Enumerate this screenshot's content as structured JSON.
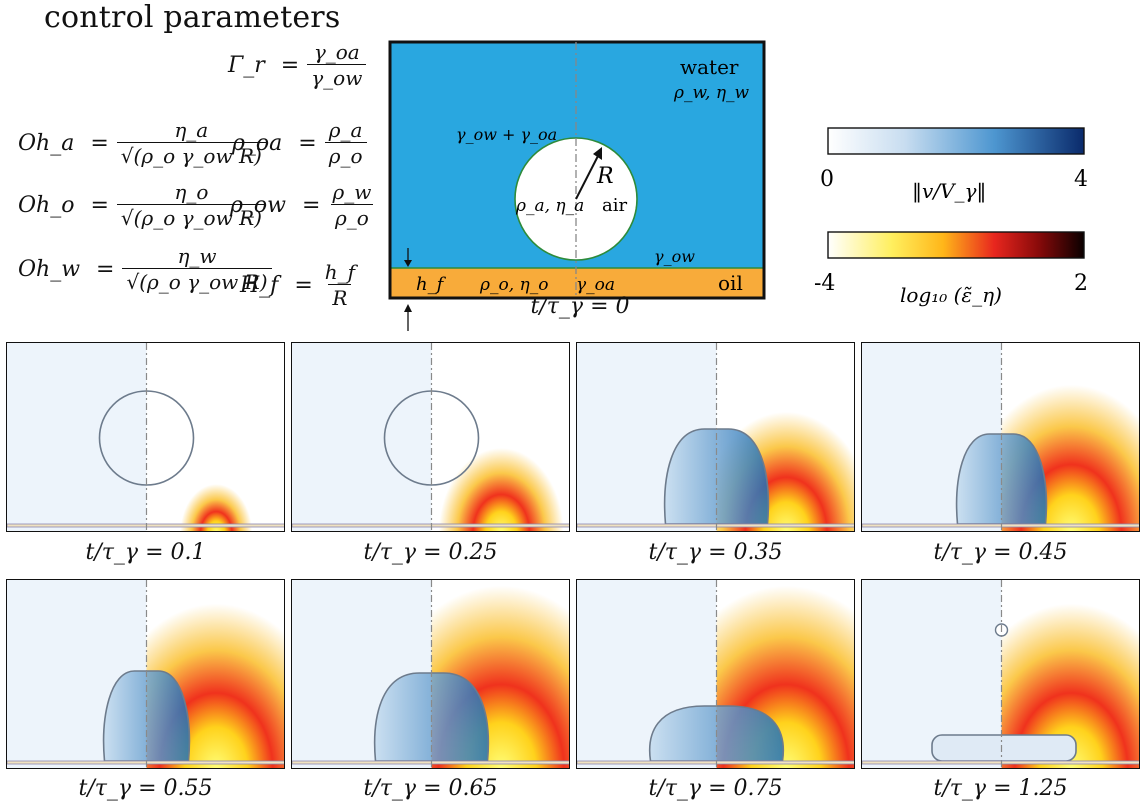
{
  "title": "control parameters",
  "params": {
    "gamma_r": {
      "lhs": "Γ_r",
      "num": "γ_oa",
      "den": "γ_ow"
    },
    "oh_a": {
      "lhs": "Oh_a",
      "num": "η_a",
      "den": "√(ρ_o γ_ow R)"
    },
    "oh_o": {
      "lhs": "Oh_o",
      "num": "η_o",
      "den": "√(ρ_o γ_ow R)"
    },
    "oh_w": {
      "lhs": "Oh_w",
      "num": "η_w",
      "den": "√(ρ_o γ_ow R)"
    },
    "rho_oa": {
      "lhs": "ρ_oa",
      "num": "ρ_a",
      "den": "ρ_o"
    },
    "rho_ow": {
      "lhs": "ρ_ow",
      "num": "ρ_w",
      "den": "ρ_o"
    },
    "h_f": {
      "lhs": "H_f",
      "num": "h_f",
      "den": "R"
    }
  },
  "schematic": {
    "water_label": "water",
    "water_props": "ρ_w, η_w",
    "air_label": "air",
    "air_props": "ρ_a, η_a",
    "radius_label": "R",
    "gamma_ow_oa": "γ_ow + γ_oa",
    "gamma_ow": "γ_ow",
    "gamma_oa": "γ_oa",
    "oil_label": "oil",
    "oil_props": "ρ_o, η_o",
    "film_label": "h_f",
    "caption": "t/τ_γ = 0",
    "colors": {
      "water": "#29a7e0",
      "oil": "#f8ab3a",
      "interface": "#2e8b3a"
    }
  },
  "colorbars": {
    "velocity": {
      "label": "‖v/V_γ‖",
      "min": "0",
      "max": "4"
    },
    "strain": {
      "label": "log₁₀ (ε̃_η)",
      "min": "-4",
      "max": "2"
    }
  },
  "snapshots": [
    {
      "caption": "t/τ_γ = 0.1"
    },
    {
      "caption": "t/τ_γ = 0.25"
    },
    {
      "caption": "t/τ_γ = 0.35"
    },
    {
      "caption": "t/τ_γ = 0.45"
    },
    {
      "caption": "t/τ_γ = 0.55"
    },
    {
      "caption": "t/τ_γ = 0.65"
    },
    {
      "caption": "t/τ_γ = 0.75"
    },
    {
      "caption": "t/τ_γ = 1.25"
    }
  ]
}
